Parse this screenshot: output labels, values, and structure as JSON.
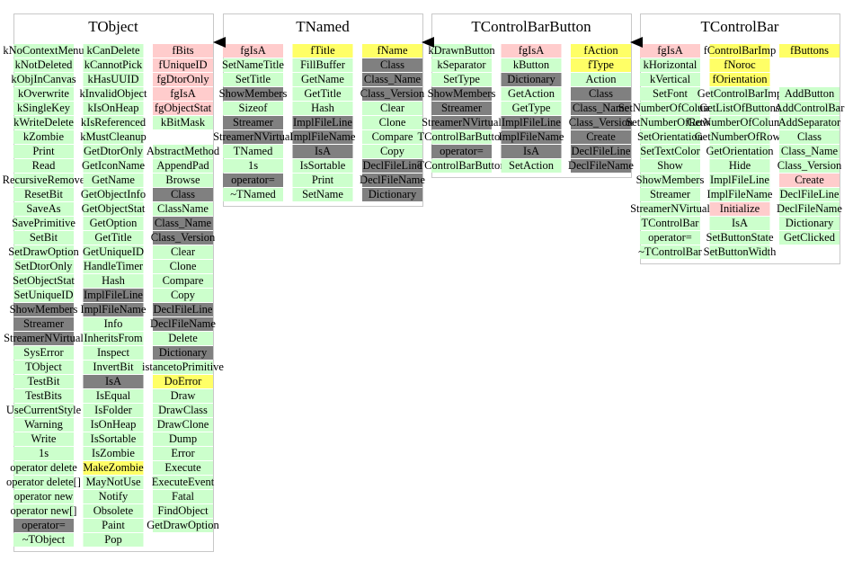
{
  "classes": [
    {
      "title": "TObject",
      "columns": [
        [
          [
            "kNoContextMenu",
            "#cfc"
          ],
          [
            "kNotDeleted",
            "#cfc"
          ],
          [
            "kObjInCanvas",
            "#cfc"
          ],
          [
            "kOverwrite",
            "#cfc"
          ],
          [
            "kSingleKey",
            "#cfc"
          ],
          [
            "kWriteDelete",
            "#cfc"
          ],
          [
            "kZombie",
            "#cfc"
          ],
          [
            "Print",
            "#cfc"
          ],
          [
            "Read",
            "#cfc"
          ],
          [
            "RecursiveRemove",
            "#cfc"
          ],
          [
            "ResetBit",
            "#cfc"
          ],
          [
            "SaveAs",
            "#cfc"
          ],
          [
            "SavePrimitive",
            "#cfc"
          ],
          [
            "SetBit",
            "#cfc"
          ],
          [
            "SetDrawOption",
            "#cfc"
          ],
          [
            "SetDtorOnly",
            "#cfc"
          ],
          [
            "SetObjectStat",
            "#cfc"
          ],
          [
            "SetUniqueID",
            "#cfc"
          ],
          [
            "ShowMembers",
            "#808080"
          ],
          [
            "Streamer",
            "#808080"
          ],
          [
            "StreamerNVirtual",
            "#808080"
          ],
          [
            "SysError",
            "#cfc"
          ],
          [
            "TObject",
            "#cfc"
          ],
          [
            "TestBit",
            "#cfc"
          ],
          [
            "TestBits",
            "#cfc"
          ],
          [
            "UseCurrentStyle",
            "#cfc"
          ],
          [
            "Warning",
            "#cfc"
          ],
          [
            "Write",
            "#cfc"
          ],
          [
            "1s",
            "#cfc"
          ],
          [
            "operator delete",
            "#cfc"
          ],
          [
            "operator delete[]",
            "#cfc"
          ],
          [
            "operator new",
            "#cfc"
          ],
          [
            "operator new[]",
            "#cfc"
          ],
          [
            "operator=",
            "#808080"
          ],
          [
            "~TObject",
            "#cfc"
          ]
        ],
        [
          [
            "kCanDelete",
            "#cfc"
          ],
          [
            "kCannotPick",
            "#cfc"
          ],
          [
            "kHasUUID",
            "#cfc"
          ],
          [
            "kInvalidObject",
            "#cfc"
          ],
          [
            "kIsOnHeap",
            "#cfc"
          ],
          [
            "kIsReferenced",
            "#cfc"
          ],
          [
            "kMustCleanup",
            "#cfc"
          ],
          [
            "GetDtorOnly",
            "#cfc"
          ],
          [
            "GetIconName",
            "#cfc"
          ],
          [
            "GetName",
            "#cfc"
          ],
          [
            "GetObjectInfo",
            "#cfc"
          ],
          [
            "GetObjectStat",
            "#cfc"
          ],
          [
            "GetOption",
            "#cfc"
          ],
          [
            "GetTitle",
            "#cfc"
          ],
          [
            "GetUniqueID",
            "#cfc"
          ],
          [
            "HandleTimer",
            "#cfc"
          ],
          [
            "Hash",
            "#cfc"
          ],
          [
            "ImplFileLine",
            "#808080"
          ],
          [
            "ImplFileName",
            "#808080"
          ],
          [
            "Info",
            "#cfc"
          ],
          [
            "InheritsFrom",
            "#cfc"
          ],
          [
            "Inspect",
            "#cfc"
          ],
          [
            "InvertBit",
            "#cfc"
          ],
          [
            "IsA",
            "#808080"
          ],
          [
            "IsEqual",
            "#cfc"
          ],
          [
            "IsFolder",
            "#cfc"
          ],
          [
            "IsOnHeap",
            "#cfc"
          ],
          [
            "IsSortable",
            "#cfc"
          ],
          [
            "IsZombie",
            "#cfc"
          ],
          [
            "MakeZombie",
            "#ff6"
          ],
          [
            "MayNotUse",
            "#cfc"
          ],
          [
            "Notify",
            "#cfc"
          ],
          [
            "Obsolete",
            "#cfc"
          ],
          [
            "Paint",
            "#cfc"
          ],
          [
            "Pop",
            "#cfc"
          ]
        ],
        [
          [
            "fBits",
            "#fcc"
          ],
          [
            "fUniqueID",
            "#fcc"
          ],
          [
            "fgDtorOnly",
            "#fcc"
          ],
          [
            "fgIsA",
            "#fcc"
          ],
          [
            "fgObjectStat",
            "#fcc"
          ],
          [
            "kBitMask",
            "#cfc"
          ],
          null,
          [
            "AbstractMethod",
            "#cfc"
          ],
          [
            "AppendPad",
            "#cfc"
          ],
          [
            "Browse",
            "#cfc"
          ],
          [
            "Class",
            "#808080"
          ],
          [
            "ClassName",
            "#cfc"
          ],
          [
            "Class_Name",
            "#808080"
          ],
          [
            "Class_Version",
            "#808080"
          ],
          [
            "Clear",
            "#cfc"
          ],
          [
            "Clone",
            "#cfc"
          ],
          [
            "Compare",
            "#cfc"
          ],
          [
            "Copy",
            "#cfc"
          ],
          [
            "DeclFileLine",
            "#808080"
          ],
          [
            "DeclFileName",
            "#808080"
          ],
          [
            "Delete",
            "#cfc"
          ],
          [
            "Dictionary",
            "#808080"
          ],
          [
            "istancetoPrimitive",
            "#cfc"
          ],
          [
            "DoError",
            "#ff6"
          ],
          [
            "Draw",
            "#cfc"
          ],
          [
            "DrawClass",
            "#cfc"
          ],
          [
            "DrawClone",
            "#cfc"
          ],
          [
            "Dump",
            "#cfc"
          ],
          [
            "Error",
            "#cfc"
          ],
          [
            "Execute",
            "#cfc"
          ],
          [
            "ExecuteEvent",
            "#cfc"
          ],
          [
            "Fatal",
            "#cfc"
          ],
          [
            "FindObject",
            "#cfc"
          ],
          [
            "GetDrawOption",
            "#cfc"
          ]
        ]
      ]
    },
    {
      "title": "TNamed",
      "columns": [
        [
          [
            "fgIsA",
            "#fcc"
          ],
          [
            "SetNameTitle",
            "#cfc"
          ],
          [
            "SetTitle",
            "#cfc"
          ],
          [
            "ShowMembers",
            "#808080"
          ],
          [
            "Sizeof",
            "#cfc"
          ],
          [
            "Streamer",
            "#808080"
          ],
          [
            "StreamerNVirtual",
            "#808080"
          ],
          [
            "TNamed",
            "#cfc"
          ],
          [
            "1s",
            "#cfc"
          ],
          [
            "operator=",
            "#808080"
          ],
          [
            "~TNamed",
            "#cfc"
          ]
        ],
        [
          [
            "fTitle",
            "#ff6"
          ],
          [
            "FillBuffer",
            "#cfc"
          ],
          [
            "GetName",
            "#cfc"
          ],
          [
            "GetTitle",
            "#cfc"
          ],
          [
            "Hash",
            "#cfc"
          ],
          [
            "ImplFileLine",
            "#808080"
          ],
          [
            "ImplFileName",
            "#808080"
          ],
          [
            "IsA",
            "#808080"
          ],
          [
            "IsSortable",
            "#cfc"
          ],
          [
            "Print",
            "#cfc"
          ],
          [
            "SetName",
            "#cfc"
          ]
        ],
        [
          [
            "fName",
            "#ff6"
          ],
          [
            "Class",
            "#808080"
          ],
          [
            "Class_Name",
            "#808080"
          ],
          [
            "Class_Version",
            "#808080"
          ],
          [
            "Clear",
            "#cfc"
          ],
          [
            "Clone",
            "#cfc"
          ],
          [
            "Compare",
            "#cfc"
          ],
          [
            "Copy",
            "#cfc"
          ],
          [
            "DeclFileLine",
            "#808080"
          ],
          [
            "DeclFileName",
            "#808080"
          ],
          [
            "Dictionary",
            "#808080"
          ]
        ]
      ]
    },
    {
      "title": "TControlBarButton",
      "columns": [
        [
          [
            "kDrawnButton",
            "#cfc"
          ],
          [
            "kSeparator",
            "#cfc"
          ],
          [
            "SetType",
            "#cfc"
          ],
          [
            "ShowMembers",
            "#808080"
          ],
          [
            "Streamer",
            "#808080"
          ],
          [
            "StreamerNVirtual",
            "#808080"
          ],
          [
            "TControlBarButton",
            "#cfc"
          ],
          [
            "operator=",
            "#808080"
          ],
          [
            "TControlBarButton",
            "#cfc"
          ]
        ],
        [
          [
            "fgIsA",
            "#fcc"
          ],
          [
            "kButton",
            "#cfc"
          ],
          [
            "Dictionary",
            "#808080"
          ],
          [
            "GetAction",
            "#cfc"
          ],
          [
            "GetType",
            "#cfc"
          ],
          [
            "ImplFileLine",
            "#808080"
          ],
          [
            "ImplFileName",
            "#808080"
          ],
          [
            "IsA",
            "#808080"
          ],
          [
            "SetAction",
            "#cfc"
          ]
        ],
        [
          [
            "fAction",
            "#ff6"
          ],
          [
            "fType",
            "#ff6"
          ],
          [
            "Action",
            "#cfc"
          ],
          [
            "Class",
            "#808080"
          ],
          [
            "Class_Name",
            "#808080"
          ],
          [
            "Class_Version",
            "#808080"
          ],
          [
            "Create",
            "#808080"
          ],
          [
            "DeclFileLine",
            "#808080"
          ],
          [
            "DeclFileName",
            "#808080"
          ]
        ]
      ]
    },
    {
      "title": "TControlBar",
      "columns": [
        [
          [
            "fgIsA",
            "#fcc"
          ],
          [
            "kHorizontal",
            "#cfc"
          ],
          [
            "kVertical",
            "#cfc"
          ],
          [
            "SetFont",
            "#cfc"
          ],
          [
            "SetNumberOfColumns",
            "#cfc"
          ],
          [
            "SetNumberOfRows",
            "#cfc"
          ],
          [
            "SetOrientation",
            "#cfc"
          ],
          [
            "SetTextColor",
            "#cfc"
          ],
          [
            "Show",
            "#cfc"
          ],
          [
            "ShowMembers",
            "#cfc"
          ],
          [
            "Streamer",
            "#cfc"
          ],
          [
            "StreamerNVirtual",
            "#cfc"
          ],
          [
            "TControlBar",
            "#cfc"
          ],
          [
            "operator=",
            "#cfc"
          ],
          [
            "~TControlBar",
            "#cfc"
          ]
        ],
        [
          [
            "fControlBarImp",
            "#ff6"
          ],
          [
            "fNoroc",
            "#ff6"
          ],
          [
            "fOrientation",
            "#ff6"
          ],
          [
            "GetControlBarImp",
            "#cfc"
          ],
          [
            "GetListOfButtons",
            "#cfc"
          ],
          [
            "GetNumberOfColumns",
            "#cfc"
          ],
          [
            "GetNumberOfRows",
            "#cfc"
          ],
          [
            "GetOrientation",
            "#cfc"
          ],
          [
            "Hide",
            "#cfc"
          ],
          [
            "ImplFileLine",
            "#cfc"
          ],
          [
            "ImplFileName",
            "#cfc"
          ],
          [
            "Initialize",
            "#fcc"
          ],
          [
            "IsA",
            "#cfc"
          ],
          [
            "SetButtonState",
            "#cfc"
          ],
          [
            "SetButtonWidth",
            "#cfc"
          ]
        ],
        [
          [
            "fButtons",
            "#ff6"
          ],
          null,
          null,
          [
            "AddButton",
            "#cfc"
          ],
          [
            "AddControlBar",
            "#cfc"
          ],
          [
            "AddSeparator",
            "#cfc"
          ],
          [
            "Class",
            "#cfc"
          ],
          [
            "Class_Name",
            "#cfc"
          ],
          [
            "Class_Version",
            "#cfc"
          ],
          [
            "Create",
            "#fcc"
          ],
          [
            "DeclFileLine",
            "#cfc"
          ],
          [
            "DeclFileName",
            "#cfc"
          ],
          [
            "Dictionary",
            "#cfc"
          ],
          [
            "GetClicked",
            "#cfc"
          ]
        ]
      ]
    }
  ]
}
